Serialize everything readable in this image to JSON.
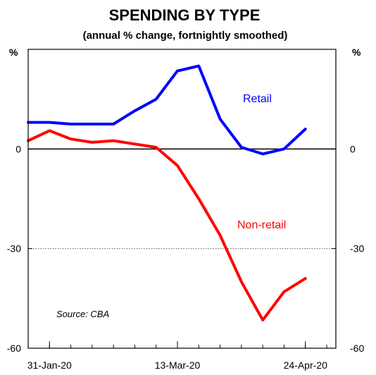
{
  "chart_data": {
    "type": "line",
    "title": "SPENDING BY TYPE",
    "subtitle": "(annual % change, fortnightly smoothed)",
    "left_unit": "%",
    "right_unit": "%",
    "ylim": [
      -60,
      30
    ],
    "y_ticks": [
      0,
      -30,
      -60
    ],
    "x_range": [
      "2020-01-24",
      "2020-05-04"
    ],
    "x_ticks": [
      {
        "date": "2020-01-31",
        "label": "31-Jan-20"
      },
      {
        "date": "2020-03-13",
        "label": "13-Mar-20"
      },
      {
        "date": "2020-04-24",
        "label": "24-Apr-20"
      }
    ],
    "zero_line": true,
    "dotted_gridline_at": -30,
    "source": "Source: CBA",
    "series": [
      {
        "name": "Retail",
        "color": "#0000ff",
        "points": [
          {
            "x": "2020-01-24",
            "y": 8
          },
          {
            "x": "2020-01-31",
            "y": 8
          },
          {
            "x": "2020-02-07",
            "y": 7.5
          },
          {
            "x": "2020-02-14",
            "y": 7.5
          },
          {
            "x": "2020-02-21",
            "y": 7.5
          },
          {
            "x": "2020-02-28",
            "y": 11.5
          },
          {
            "x": "2020-03-06",
            "y": 15
          },
          {
            "x": "2020-03-13",
            "y": 23.5
          },
          {
            "x": "2020-03-20",
            "y": 25
          },
          {
            "x": "2020-03-27",
            "y": 9
          },
          {
            "x": "2020-04-03",
            "y": 0.5
          },
          {
            "x": "2020-04-10",
            "y": -1.5
          },
          {
            "x": "2020-04-17",
            "y": 0
          },
          {
            "x": "2020-04-24",
            "y": 6
          }
        ]
      },
      {
        "name": "Non-retail",
        "color": "#ff0000",
        "points": [
          {
            "x": "2020-01-24",
            "y": 2.5
          },
          {
            "x": "2020-01-31",
            "y": 5.5
          },
          {
            "x": "2020-02-07",
            "y": 3
          },
          {
            "x": "2020-02-14",
            "y": 2
          },
          {
            "x": "2020-02-21",
            "y": 2.5
          },
          {
            "x": "2020-02-28",
            "y": 1.5
          },
          {
            "x": "2020-03-06",
            "y": 0.5
          },
          {
            "x": "2020-03-13",
            "y": -5
          },
          {
            "x": "2020-03-20",
            "y": -15
          },
          {
            "x": "2020-03-27",
            "y": -26
          },
          {
            "x": "2020-04-03",
            "y": -40
          },
          {
            "x": "2020-04-10",
            "y": -51.5
          },
          {
            "x": "2020-04-17",
            "y": -43
          },
          {
            "x": "2020-04-24",
            "y": -39
          }
        ]
      }
    ]
  }
}
